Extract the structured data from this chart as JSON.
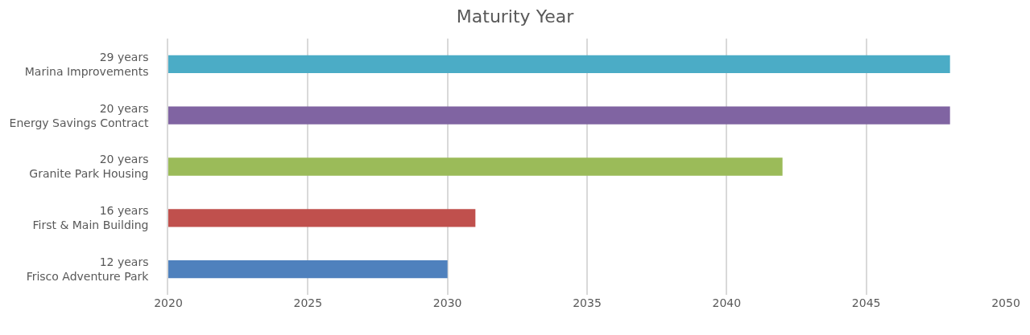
{
  "chart_data": {
    "type": "bar",
    "orientation": "horizontal",
    "title": "Maturity Year",
    "categories": [
      "29 years\nMarina Improvements",
      "20 years\nEnergy Savings Contract",
      "20 years\nGranite Park Housing",
      "16 years\nFirst & Main Building",
      "12 years\nFrisco Adventure Park"
    ],
    "values": [
      2048,
      2048,
      2042,
      2031,
      2030
    ],
    "colors": [
      "#4bacc6",
      "#8064a2",
      "#9bbb59",
      "#c0504d",
      "#4f81bd"
    ],
    "xlim": [
      2020,
      2050
    ],
    "xticks": [
      2020,
      2025,
      2030,
      2035,
      2040,
      2045,
      2050
    ],
    "grid": "x"
  }
}
